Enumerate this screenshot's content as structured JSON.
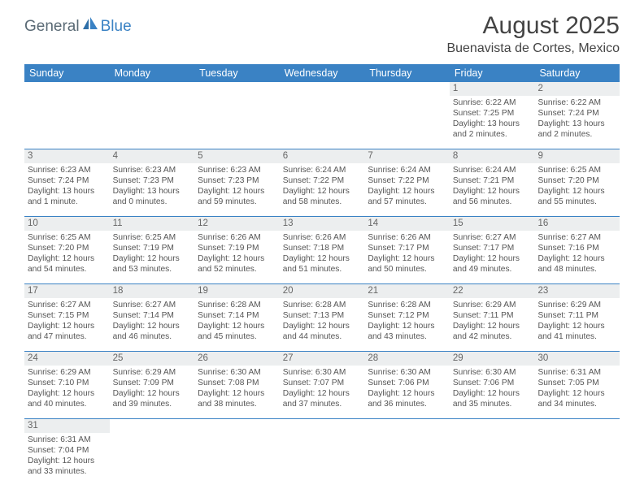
{
  "logo": {
    "part1": "General",
    "part2": "Blue"
  },
  "title": "August 2025",
  "location": "Buenavista de Cortes, Mexico",
  "colors": {
    "header_bg": "#3a82c4",
    "header_text": "#ffffff",
    "daynum_bg": "#eceeef",
    "row_border": "#3a82c4",
    "text": "#555555"
  },
  "weekdays": [
    "Sunday",
    "Monday",
    "Tuesday",
    "Wednesday",
    "Thursday",
    "Friday",
    "Saturday"
  ],
  "weeks": [
    [
      {
        "n": "",
        "empty": true
      },
      {
        "n": "",
        "empty": true
      },
      {
        "n": "",
        "empty": true
      },
      {
        "n": "",
        "empty": true
      },
      {
        "n": "",
        "empty": true
      },
      {
        "n": "1",
        "sr": "6:22 AM",
        "ss": "7:25 PM",
        "dl": "13 hours and 2 minutes."
      },
      {
        "n": "2",
        "sr": "6:22 AM",
        "ss": "7:24 PM",
        "dl": "13 hours and 2 minutes."
      }
    ],
    [
      {
        "n": "3",
        "sr": "6:23 AM",
        "ss": "7:24 PM",
        "dl": "13 hours and 1 minute."
      },
      {
        "n": "4",
        "sr": "6:23 AM",
        "ss": "7:23 PM",
        "dl": "13 hours and 0 minutes."
      },
      {
        "n": "5",
        "sr": "6:23 AM",
        "ss": "7:23 PM",
        "dl": "12 hours and 59 minutes."
      },
      {
        "n": "6",
        "sr": "6:24 AM",
        "ss": "7:22 PM",
        "dl": "12 hours and 58 minutes."
      },
      {
        "n": "7",
        "sr": "6:24 AM",
        "ss": "7:22 PM",
        "dl": "12 hours and 57 minutes."
      },
      {
        "n": "8",
        "sr": "6:24 AM",
        "ss": "7:21 PM",
        "dl": "12 hours and 56 minutes."
      },
      {
        "n": "9",
        "sr": "6:25 AM",
        "ss": "7:20 PM",
        "dl": "12 hours and 55 minutes."
      }
    ],
    [
      {
        "n": "10",
        "sr": "6:25 AM",
        "ss": "7:20 PM",
        "dl": "12 hours and 54 minutes."
      },
      {
        "n": "11",
        "sr": "6:25 AM",
        "ss": "7:19 PM",
        "dl": "12 hours and 53 minutes."
      },
      {
        "n": "12",
        "sr": "6:26 AM",
        "ss": "7:19 PM",
        "dl": "12 hours and 52 minutes."
      },
      {
        "n": "13",
        "sr": "6:26 AM",
        "ss": "7:18 PM",
        "dl": "12 hours and 51 minutes."
      },
      {
        "n": "14",
        "sr": "6:26 AM",
        "ss": "7:17 PM",
        "dl": "12 hours and 50 minutes."
      },
      {
        "n": "15",
        "sr": "6:27 AM",
        "ss": "7:17 PM",
        "dl": "12 hours and 49 minutes."
      },
      {
        "n": "16",
        "sr": "6:27 AM",
        "ss": "7:16 PM",
        "dl": "12 hours and 48 minutes."
      }
    ],
    [
      {
        "n": "17",
        "sr": "6:27 AM",
        "ss": "7:15 PM",
        "dl": "12 hours and 47 minutes."
      },
      {
        "n": "18",
        "sr": "6:27 AM",
        "ss": "7:14 PM",
        "dl": "12 hours and 46 minutes."
      },
      {
        "n": "19",
        "sr": "6:28 AM",
        "ss": "7:14 PM",
        "dl": "12 hours and 45 minutes."
      },
      {
        "n": "20",
        "sr": "6:28 AM",
        "ss": "7:13 PM",
        "dl": "12 hours and 44 minutes."
      },
      {
        "n": "21",
        "sr": "6:28 AM",
        "ss": "7:12 PM",
        "dl": "12 hours and 43 minutes."
      },
      {
        "n": "22",
        "sr": "6:29 AM",
        "ss": "7:11 PM",
        "dl": "12 hours and 42 minutes."
      },
      {
        "n": "23",
        "sr": "6:29 AM",
        "ss": "7:11 PM",
        "dl": "12 hours and 41 minutes."
      }
    ],
    [
      {
        "n": "24",
        "sr": "6:29 AM",
        "ss": "7:10 PM",
        "dl": "12 hours and 40 minutes."
      },
      {
        "n": "25",
        "sr": "6:29 AM",
        "ss": "7:09 PM",
        "dl": "12 hours and 39 minutes."
      },
      {
        "n": "26",
        "sr": "6:30 AM",
        "ss": "7:08 PM",
        "dl": "12 hours and 38 minutes."
      },
      {
        "n": "27",
        "sr": "6:30 AM",
        "ss": "7:07 PM",
        "dl": "12 hours and 37 minutes."
      },
      {
        "n": "28",
        "sr": "6:30 AM",
        "ss": "7:06 PM",
        "dl": "12 hours and 36 minutes."
      },
      {
        "n": "29",
        "sr": "6:30 AM",
        "ss": "7:06 PM",
        "dl": "12 hours and 35 minutes."
      },
      {
        "n": "30",
        "sr": "6:31 AM",
        "ss": "7:05 PM",
        "dl": "12 hours and 34 minutes."
      }
    ],
    [
      {
        "n": "31",
        "sr": "6:31 AM",
        "ss": "7:04 PM",
        "dl": "12 hours and 33 minutes."
      },
      {
        "n": "",
        "empty": true
      },
      {
        "n": "",
        "empty": true
      },
      {
        "n": "",
        "empty": true
      },
      {
        "n": "",
        "empty": true
      },
      {
        "n": "",
        "empty": true
      },
      {
        "n": "",
        "empty": true
      }
    ]
  ],
  "labels": {
    "sunrise": "Sunrise:",
    "sunset": "Sunset:",
    "daylight": "Daylight:"
  }
}
